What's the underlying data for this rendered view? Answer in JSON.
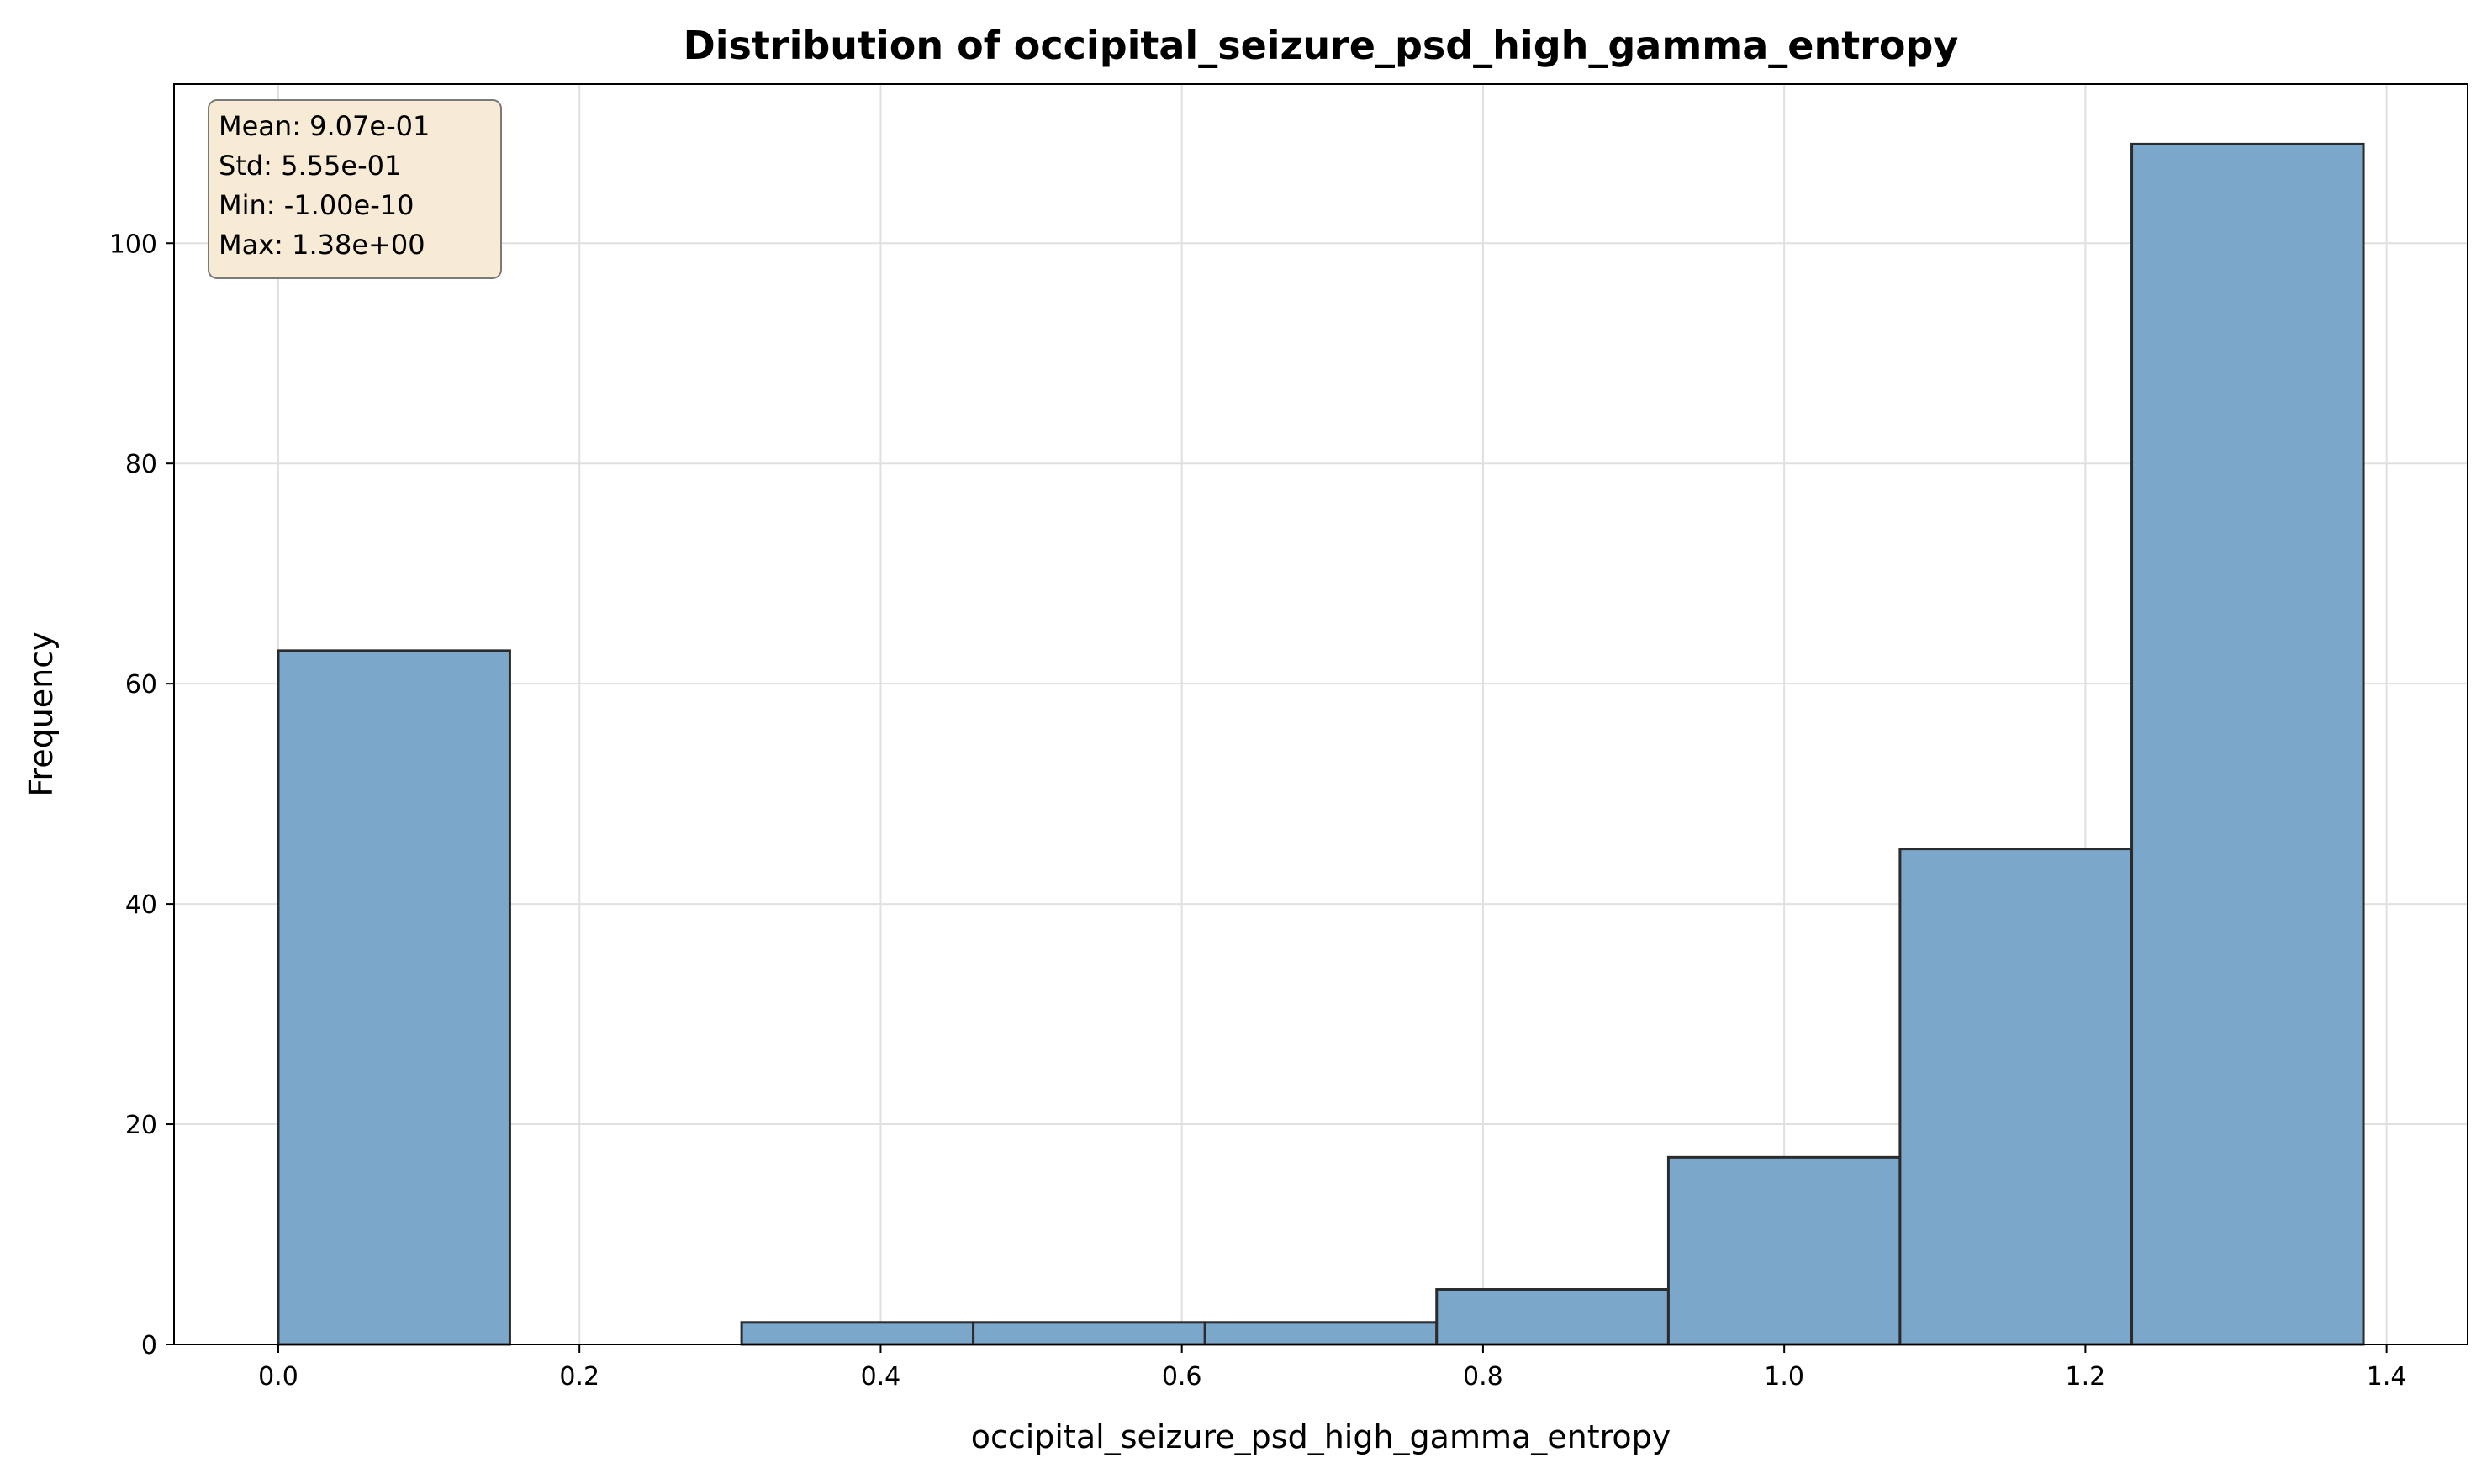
{
  "chart_data": {
    "type": "bar",
    "title": "Distribution of occipital_seizure_psd_high_gamma_entropy",
    "xlabel": "occipital_seizure_psd_high_gamma_entropy",
    "ylabel": "Frequency",
    "bin_edges": [
      0.0,
      0.1538,
      0.3077,
      0.4615,
      0.6154,
      0.7692,
      0.9231,
      1.0769,
      1.2308,
      1.3846
    ],
    "values": [
      63,
      0,
      2,
      2,
      2,
      5,
      17,
      45,
      109
    ],
    "xlim": [
      -0.0692,
      1.4538
    ],
    "ylim": [
      0,
      114.45
    ],
    "xticks": [
      0.0,
      0.2,
      0.4,
      0.6,
      0.8,
      1.0,
      1.2,
      1.4
    ],
    "xtick_labels": [
      "0.0",
      "0.2",
      "0.4",
      "0.6",
      "0.8",
      "1.0",
      "1.2",
      "1.4"
    ],
    "yticks": [
      0,
      20,
      40,
      60,
      80,
      100
    ],
    "ytick_labels": [
      "0",
      "20",
      "40",
      "60",
      "80",
      "100"
    ],
    "grid": true,
    "stats_box": {
      "position": "top-left",
      "lines": [
        "Mean: 9.07e-01",
        "Std: 5.55e-01",
        "Min: -1.00e-10",
        "Max: 1.38e+00"
      ]
    },
    "colors": {
      "bar_fill": "#7ba7cb",
      "bar_edge": "#2b2b2b",
      "grid": "#e0e0e0",
      "stats_box_fill": "#f7ebd5",
      "stats_box_edge": "#7a7a7a"
    }
  }
}
